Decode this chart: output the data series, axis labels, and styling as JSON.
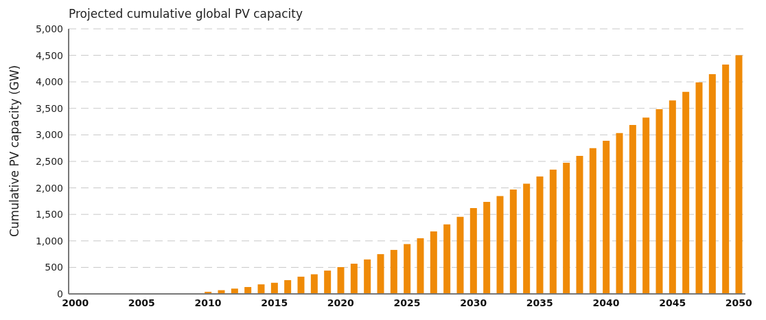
{
  "chart_data": {
    "type": "bar",
    "title": "Projected cumulative global PV capacity",
    "ylabel": "Cumulative PV capacity (GW)",
    "categories": [
      "2000",
      null,
      null,
      null,
      null,
      "2005",
      null,
      null,
      null,
      null,
      "2010",
      null,
      null,
      null,
      null,
      "2015",
      null,
      null,
      null,
      null,
      "2020",
      null,
      null,
      null,
      null,
      "2025",
      null,
      null,
      null,
      null,
      "2030",
      null,
      null,
      null,
      null,
      "2035",
      null,
      null,
      null,
      null,
      "2040",
      null,
      null,
      null,
      null,
      "2045",
      null,
      null,
      null,
      null,
      "2050"
    ],
    "values": [
      10,
      10,
      10,
      10,
      10,
      10,
      10,
      10,
      10,
      10,
      40,
      70,
      100,
      130,
      180,
      210,
      260,
      325,
      370,
      440,
      505,
      570,
      650,
      750,
      830,
      940,
      1050,
      1180,
      1310,
      1455,
      1620,
      1735,
      1845,
      1970,
      2080,
      2215,
      2345,
      2475,
      2605,
      2750,
      2890,
      3035,
      3185,
      3325,
      3485,
      3650,
      3810,
      3990,
      4145,
      4325,
      4500
    ],
    "color": "#ef8a07",
    "ylim": [
      0,
      5000
    ],
    "yticks": [
      {
        "value": 0,
        "label": "0"
      },
      {
        "value": 500,
        "label": "500"
      },
      {
        "value": 1000,
        "label": "1,000"
      },
      {
        "value": 1500,
        "label": "1,500"
      },
      {
        "value": 2000,
        "label": "2,000"
      },
      {
        "value": 2500,
        "label": "2,500"
      },
      {
        "value": 3000,
        "label": "3,000"
      },
      {
        "value": 3500,
        "label": "3,500"
      },
      {
        "value": 4000,
        "label": "4,000"
      },
      {
        "value": 4500,
        "label": "4,500"
      },
      {
        "value": 5000,
        "label": "5,000"
      }
    ],
    "grid": "y"
  }
}
